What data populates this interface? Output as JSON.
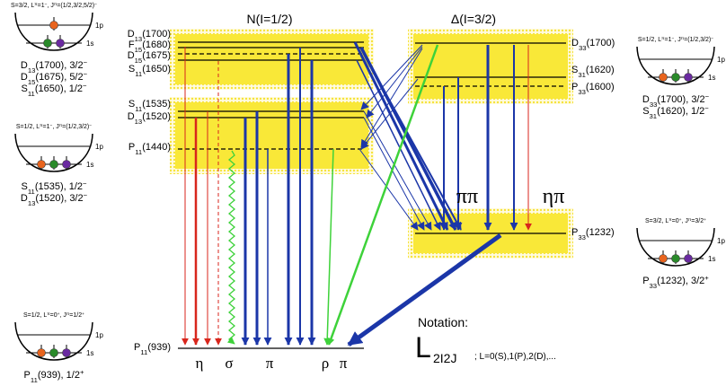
{
  "titles": {
    "nucleon": "N(I=1/2)",
    "delta": "Δ(I=3/2)"
  },
  "nucleon_levels": [
    "D13(1700)",
    "F15(1680)",
    "D15(1675)",
    "S11(1650)",
    "S11(1535)",
    "D13(1520)",
    "P11(1440)",
    "P11(939)"
  ],
  "delta_levels": [
    "D33(1700)",
    "S31(1620)",
    "P33(1600)",
    "P33(1232)"
  ],
  "decay_labels": [
    "η",
    "σ",
    "π",
    "ρ",
    "π",
    "ππ",
    "ηπ"
  ],
  "notation": {
    "heading": "Notation:",
    "symbol": "L",
    "index": "2I2J",
    "note": "; L=0(S),1(P),2(D),..."
  },
  "wells": [
    {
      "header": "S=3/2, Lπ=1−, Jπ=(1/2,3/2,5/2)−",
      "shells": [
        "1p",
        "1s"
      ],
      "captions": [
        "D13(1700), 3/2−",
        "D15(1675), 5/2−",
        "S11(1650), 1/2−"
      ]
    },
    {
      "header": "S=1/2, Lπ=1−, Jπ=(1/2,3/2)−",
      "shells": [
        "1p",
        "1s"
      ],
      "captions": [
        "S11(1535), 1/2−",
        "D13(1520), 3/2−"
      ]
    },
    {
      "header": "S=1/2, Lπ=0+, Jπ=1/2+",
      "shells": [
        "1p",
        "1s"
      ],
      "captions": [
        "P11(939), 1/2+"
      ]
    },
    {
      "header": "S=1/2, Lπ=1−, Jπ=(1/2,3/2)−",
      "shells": [
        "1p",
        "1s"
      ],
      "captions": [
        "D33(1700), 3/2−",
        "S31(1620), 1/2−"
      ]
    },
    {
      "header": "S=3/2, Lπ=0+, Jπ=3/2+",
      "shells": [
        "1p",
        "1s"
      ],
      "captions": [
        "P33(1232), 3/2+"
      ]
    }
  ]
}
